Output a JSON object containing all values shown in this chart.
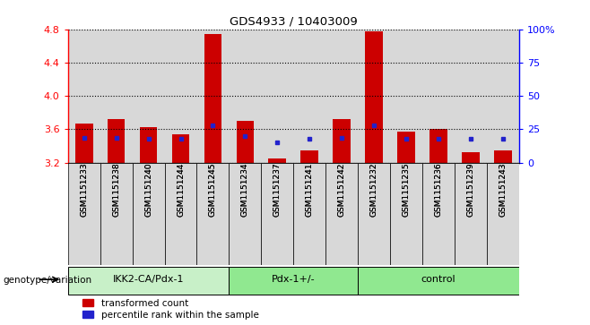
{
  "title": "GDS4933 / 10403009",
  "samples": [
    "GSM1151233",
    "GSM1151238",
    "GSM1151240",
    "GSM1151244",
    "GSM1151245",
    "GSM1151234",
    "GSM1151237",
    "GSM1151241",
    "GSM1151242",
    "GSM1151232",
    "GSM1151235",
    "GSM1151236",
    "GSM1151239",
    "GSM1151243"
  ],
  "red_values": [
    3.67,
    3.72,
    3.62,
    3.54,
    4.74,
    3.7,
    3.25,
    3.35,
    3.72,
    4.78,
    3.57,
    3.6,
    3.32,
    3.35
  ],
  "blue_values": [
    3.5,
    3.5,
    3.48,
    3.48,
    3.65,
    3.52,
    3.44,
    3.48,
    3.5,
    3.65,
    3.48,
    3.48,
    3.48,
    3.48
  ],
  "groups": [
    {
      "name": "IKK2-CA/Pdx-1",
      "start": 0,
      "end": 5,
      "color": "#c8f0c8"
    },
    {
      "name": "Pdx-1+/-",
      "start": 5,
      "end": 9,
      "color": "#90e890"
    },
    {
      "name": "control",
      "start": 9,
      "end": 14,
      "color": "#90e890"
    }
  ],
  "ylim": [
    3.2,
    4.8
  ],
  "yticks": [
    3.2,
    3.6,
    4.0,
    4.4,
    4.8
  ],
  "right_yticks": [
    0,
    25,
    50,
    75,
    100
  ],
  "right_ylim": [
    0,
    100
  ],
  "bar_color_red": "#cc0000",
  "bar_color_blue": "#2222cc",
  "bar_width": 0.55,
  "xlabel": "genotype/variation",
  "legend_red": "transformed count",
  "legend_blue": "percentile rank within the sample"
}
